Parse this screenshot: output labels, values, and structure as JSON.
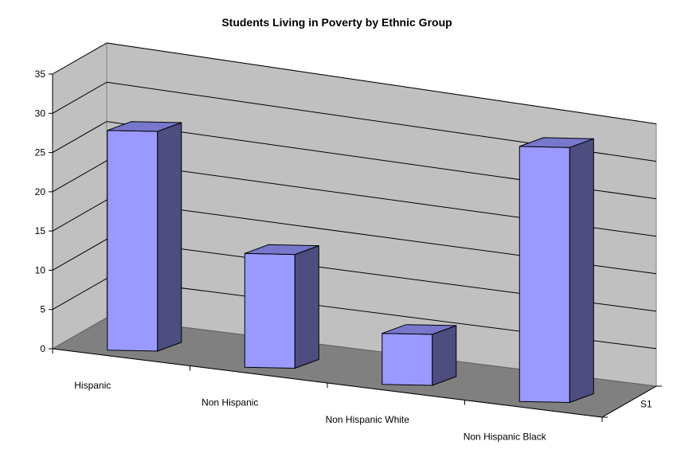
{
  "chart_data": {
    "type": "bar",
    "title": "Students Living in Poverty by Ethnic Group",
    "categories": [
      "Hispanic",
      "Non Hispanic",
      "Non Hispanic White",
      "Non  Hispanic Black"
    ],
    "series": [
      {
        "name": "S1",
        "values": [
          28,
          14.5,
          6.5,
          32.5
        ]
      }
    ],
    "ylim": [
      0,
      35
    ],
    "yticks": [
      0,
      5,
      10,
      15,
      20,
      25,
      30,
      35
    ],
    "grid": true,
    "projection": "3d",
    "colors": {
      "bar_front": "#9999ff",
      "bar_side": "#4d4d80",
      "bar_top": "#7777cc",
      "back_wall": "#c0c0c0",
      "side_wall": "#c0c0c0",
      "floor": "#808080",
      "gridline": "#000000"
    }
  }
}
